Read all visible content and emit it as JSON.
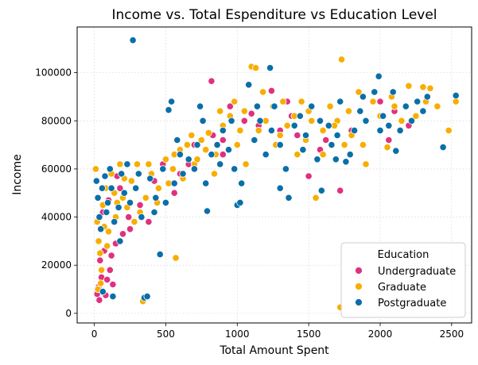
{
  "chart_data": {
    "type": "scatter",
    "title": "Income vs. Total Espenditure vs Education Level",
    "xlabel": "Total Amount Spent",
    "ylabel": "Income",
    "xlim": [
      -120,
      2640
    ],
    "ylim": [
      -4000,
      119000
    ],
    "xticks": [
      0,
      500,
      1000,
      1500,
      2000,
      2500
    ],
    "yticks": [
      0,
      20000,
      40000,
      60000,
      80000,
      100000
    ],
    "grid": true,
    "legend": {
      "title": "Education",
      "position": "bottom-right"
    },
    "series": [
      {
        "name": "Undergraduate",
        "color": "#e0307f",
        "points": [
          [
            20,
            8000
          ],
          [
            30,
            11000
          ],
          [
            50,
            15000
          ],
          [
            60,
            9000
          ],
          [
            80,
            7500
          ],
          [
            90,
            14000
          ],
          [
            40,
            22000
          ],
          [
            70,
            26000
          ],
          [
            110,
            18000
          ],
          [
            120,
            24000
          ],
          [
            150,
            29000
          ],
          [
            200,
            33000
          ],
          [
            60,
            42000
          ],
          [
            100,
            47000
          ],
          [
            180,
            52000
          ],
          [
            240,
            40000
          ],
          [
            320,
            45000
          ],
          [
            420,
            55000
          ],
          [
            480,
            62000
          ],
          [
            600,
            58000
          ],
          [
            700,
            70000
          ],
          [
            820,
            96500
          ],
          [
            900,
            72000
          ],
          [
            950,
            86000
          ],
          [
            1050,
            80000
          ],
          [
            1150,
            78000
          ],
          [
            1240,
            92500
          ],
          [
            1300,
            76000
          ],
          [
            1380,
            82000
          ],
          [
            1420,
            74000
          ],
          [
            1500,
            57000
          ],
          [
            1580,
            68000
          ],
          [
            1620,
            72000
          ],
          [
            1720,
            51000
          ],
          [
            1800,
            76000
          ],
          [
            1900,
            80000
          ],
          [
            2000,
            88000
          ],
          [
            2100,
            84000
          ],
          [
            2200,
            78000
          ],
          [
            1100,
            83000
          ],
          [
            900,
            66000
          ],
          [
            560,
            50000
          ],
          [
            380,
            38000
          ],
          [
            250,
            35000
          ],
          [
            160,
            57000
          ],
          [
            130,
            12000
          ],
          [
            35,
            5500
          ],
          [
            1350,
            88000
          ],
          [
            1700,
            80000
          ],
          [
            2060,
            72000
          ],
          [
            830,
            74000
          ],
          [
            660,
            62000
          ]
        ]
      },
      {
        "name": "Graduate",
        "color": "#f7ae00",
        "points": [
          [
            10,
            60000
          ],
          [
            20,
            38000
          ],
          [
            30,
            30000
          ],
          [
            40,
            25000
          ],
          [
            50,
            18000
          ],
          [
            60,
            45000
          ],
          [
            80,
            52000
          ],
          [
            100,
            34000
          ],
          [
            120,
            58000
          ],
          [
            150,
            40000
          ],
          [
            180,
            62000
          ],
          [
            200,
            48000
          ],
          [
            230,
            44000
          ],
          [
            260,
            55000
          ],
          [
            300,
            62000
          ],
          [
            340,
            5000
          ],
          [
            360,
            48000
          ],
          [
            400,
            58000
          ],
          [
            450,
            52000
          ],
          [
            500,
            64000
          ],
          [
            550,
            60000
          ],
          [
            570,
            23000
          ],
          [
            600,
            68000
          ],
          [
            650,
            70000
          ],
          [
            700,
            62000
          ],
          [
            750,
            72000
          ],
          [
            800,
            75000
          ],
          [
            850,
            66000
          ],
          [
            900,
            78000
          ],
          [
            950,
            82000
          ],
          [
            1000,
            70000
          ],
          [
            1050,
            84000
          ],
          [
            1100,
            102500
          ],
          [
            1130,
            102000
          ],
          [
            1150,
            76000
          ],
          [
            1200,
            80000
          ],
          [
            1250,
            86000
          ],
          [
            1300,
            74000
          ],
          [
            1350,
            78000
          ],
          [
            1400,
            82000
          ],
          [
            1450,
            88000
          ],
          [
            1500,
            84000
          ],
          [
            1550,
            48000
          ],
          [
            1600,
            76000
          ],
          [
            1650,
            86000
          ],
          [
            1700,
            80000
          ],
          [
            1720,
            2500
          ],
          [
            1730,
            105500
          ],
          [
            1750,
            70000
          ],
          [
            1800,
            74000
          ],
          [
            1850,
            92000
          ],
          [
            1900,
            62000
          ],
          [
            1950,
            88000
          ],
          [
            2000,
            82000
          ],
          [
            2050,
            69000
          ],
          [
            2100,
            86000
          ],
          [
            2150,
            80000
          ],
          [
            2200,
            94500
          ],
          [
            2250,
            82000
          ],
          [
            2300,
            94000
          ],
          [
            2350,
            93500
          ],
          [
            2480,
            76000
          ],
          [
            2530,
            88000
          ],
          [
            2400,
            86000
          ],
          [
            1600,
            66000
          ],
          [
            1680,
            78000
          ],
          [
            1480,
            72000
          ],
          [
            1320,
            88000
          ],
          [
            1180,
            92000
          ],
          [
            980,
            88000
          ],
          [
            880,
            84000
          ],
          [
            720,
            64000
          ],
          [
            620,
            56000
          ],
          [
            520,
            54000
          ],
          [
            440,
            46000
          ],
          [
            380,
            62000
          ],
          [
            320,
            42000
          ],
          [
            280,
            38000
          ],
          [
            140,
            50000
          ],
          [
            90,
            28000
          ],
          [
            70,
            36000
          ],
          [
            25,
            10000
          ],
          [
            45,
            12500
          ],
          [
            160,
            46000
          ],
          [
            210,
            56000
          ],
          [
            560,
            66000
          ],
          [
            780,
            68000
          ],
          [
            1020,
            76000
          ],
          [
            1270,
            70000
          ],
          [
            1520,
            80000
          ],
          [
            1780,
            84000
          ],
          [
            2080,
            90000
          ],
          [
            2320,
            88000
          ],
          [
            1880,
            70000
          ],
          [
            1420,
            66000
          ],
          [
            1060,
            62000
          ],
          [
            840,
            58000
          ],
          [
            680,
            74000
          ]
        ]
      },
      {
        "name": "Postgraduate",
        "color": "#0a6fa8",
        "points": [
          [
            15,
            55000
          ],
          [
            25,
            48000
          ],
          [
            35,
            40000
          ],
          [
            45,
            35000
          ],
          [
            55,
            52000
          ],
          [
            75,
            57000
          ],
          [
            95,
            46000
          ],
          [
            110,
            60000
          ],
          [
            130,
            7000
          ],
          [
            140,
            38000
          ],
          [
            170,
            44000
          ],
          [
            190,
            58000
          ],
          [
            210,
            50000
          ],
          [
            250,
            46000
          ],
          [
            270,
            113500
          ],
          [
            290,
            52000
          ],
          [
            330,
            40000
          ],
          [
            350,
            6500
          ],
          [
            370,
            7000
          ],
          [
            390,
            56000
          ],
          [
            420,
            42000
          ],
          [
            460,
            24500
          ],
          [
            480,
            60000
          ],
          [
            520,
            84500
          ],
          [
            540,
            88000
          ],
          [
            580,
            72000
          ],
          [
            620,
            58000
          ],
          [
            660,
            64000
          ],
          [
            700,
            60000
          ],
          [
            740,
            86000
          ],
          [
            760,
            80000
          ],
          [
            790,
            42500
          ],
          [
            820,
            66000
          ],
          [
            860,
            70000
          ],
          [
            900,
            76000
          ],
          [
            940,
            68000
          ],
          [
            980,
            60000
          ],
          [
            1000,
            45000
          ],
          [
            1020,
            46000
          ],
          [
            1080,
            95000
          ],
          [
            1120,
            72000
          ],
          [
            1160,
            80000
          ],
          [
            1200,
            66000
          ],
          [
            1230,
            102000
          ],
          [
            1260,
            86000
          ],
          [
            1300,
            70000
          ],
          [
            1340,
            60000
          ],
          [
            1360,
            48000
          ],
          [
            1400,
            78000
          ],
          [
            1440,
            82000
          ],
          [
            1480,
            74000
          ],
          [
            1520,
            86000
          ],
          [
            1560,
            64000
          ],
          [
            1590,
            51000
          ],
          [
            1640,
            78000
          ],
          [
            1660,
            70000
          ],
          [
            1700,
            74000
          ],
          [
            1760,
            63000
          ],
          [
            1790,
            66000
          ],
          [
            1820,
            76000
          ],
          [
            1860,
            84000
          ],
          [
            1900,
            80000
          ],
          [
            1960,
            92000
          ],
          [
            1990,
            98500
          ],
          [
            2020,
            82000
          ],
          [
            2060,
            78000
          ],
          [
            2090,
            92000
          ],
          [
            2110,
            67500
          ],
          [
            2140,
            76000
          ],
          [
            2180,
            86000
          ],
          [
            2220,
            80000
          ],
          [
            2260,
            88000
          ],
          [
            2300,
            84000
          ],
          [
            2330,
            90000
          ],
          [
            2440,
            69000
          ],
          [
            2530,
            90500
          ],
          [
            1880,
            90000
          ],
          [
            1720,
            88000
          ],
          [
            1580,
            80000
          ],
          [
            1460,
            68000
          ],
          [
            1240,
            76000
          ],
          [
            1140,
            86000
          ],
          [
            960,
            80000
          ],
          [
            880,
            62000
          ],
          [
            720,
            70000
          ],
          [
            600,
            66000
          ],
          [
            560,
            54000
          ],
          [
            500,
            46000
          ],
          [
            430,
            48000
          ],
          [
            310,
            58000
          ],
          [
            230,
            62000
          ],
          [
            120,
            52000
          ],
          [
            85,
            42000
          ],
          [
            60,
            9000
          ],
          [
            180,
            30000
          ],
          [
            1030,
            54000
          ],
          [
            1300,
            52000
          ],
          [
            1690,
            64000
          ],
          [
            2000,
            76000
          ],
          [
            780,
            54000
          ]
        ]
      }
    ]
  }
}
